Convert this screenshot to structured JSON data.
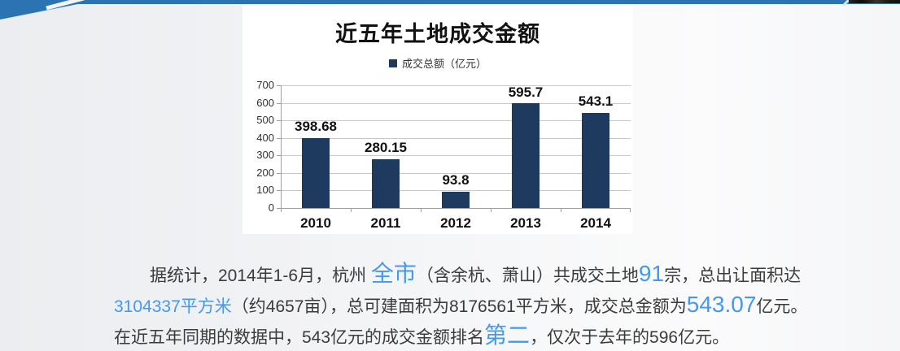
{
  "chart_data": {
    "type": "bar",
    "title": "近五年土地成交金额",
    "legend_label": "成交总额（亿元）",
    "legend_position": "top",
    "categories": [
      "2010",
      "2011",
      "2012",
      "2013",
      "2014"
    ],
    "values": [
      398.68,
      280.15,
      93.8,
      595.7,
      543.1
    ],
    "value_labels": [
      "398.68",
      "280.15",
      "93.8",
      "595.7",
      "543.1"
    ],
    "ylim": [
      0,
      700
    ],
    "ytick_step": 100,
    "grid": true,
    "bar_color": "#1F3A5F",
    "xlabel": "",
    "ylabel": ""
  },
  "article": {
    "line1": [
      {
        "t": "据统计，2014年1-6月，杭州 ",
        "s": "body"
      },
      {
        "t": "全市",
        "s": "hl-lg"
      },
      {
        "t": "（含余杭、萧山）共成交土地",
        "s": "body"
      },
      {
        "t": "91",
        "s": "hl-lg"
      },
      {
        "t": "宗，总出让面积达",
        "s": "body"
      }
    ],
    "line2": [
      {
        "t": "3104337平方米",
        "s": "hl"
      },
      {
        "t": "（约4657亩），总可建面积为8176561平方米，成交总金额为",
        "s": "body"
      },
      {
        "t": "543.07",
        "s": "hl-lg"
      },
      {
        "t": "亿元。",
        "s": "body"
      }
    ],
    "line3": [
      {
        "t": "在近五年同期的数据中，543亿元的成交金额排名",
        "s": "body"
      },
      {
        "t": "第二",
        "s": "hl-lg"
      },
      {
        "t": "，仅次于去年的596亿元。",
        "s": "body"
      }
    ]
  },
  "colors": {
    "accent_blue": "#2C73B4",
    "bar_navy": "#1F3A5F",
    "highlight_blue": "#4499EE",
    "gridline": "#c9c9c9"
  }
}
